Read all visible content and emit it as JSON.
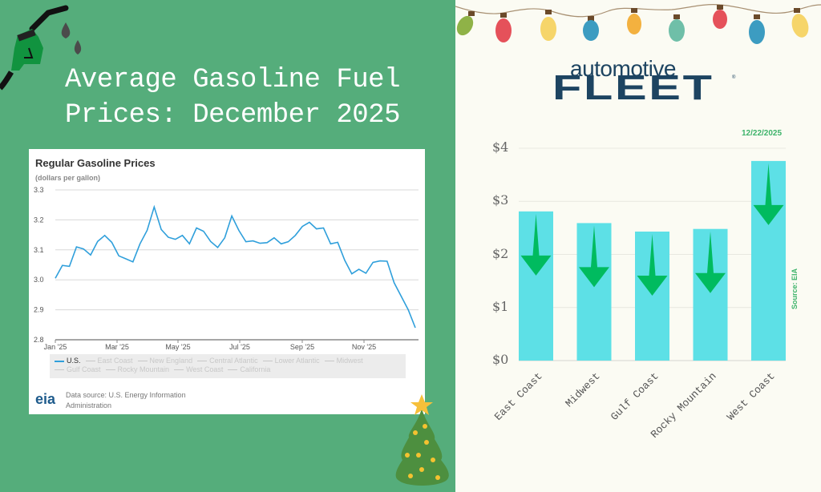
{
  "header": {
    "title_line1": "Average Gasoline Fuel",
    "title_line2": "Prices: December 2025"
  },
  "brand": {
    "top": "automotive",
    "bottom": "FLEET",
    "reg": "®"
  },
  "colors": {
    "left_bg": "#55ad7b",
    "right_bg": "#fbfbf3",
    "bar": "#5de0e6",
    "arrow": "#00bb5f",
    "line": "#2f9fdb",
    "brand": "#1d4461",
    "accent_green": "#3db36a"
  },
  "line_chart": {
    "title": "Regular Gasoline Prices",
    "unit": "(dollars per gallon)",
    "legend": [
      "U.S.",
      "East Coast",
      "New England",
      "Central Atlantic",
      "Lower Atlantic",
      "Midwest",
      "Gulf Coast",
      "Rocky Mountain",
      "West Coast",
      "California"
    ],
    "legend_active": "U.S.",
    "source_line1": "Data source: U.S. Energy Information",
    "source_line2": "Administration",
    "logo": "eia"
  },
  "bar_chart": {
    "date": "12/22/2025",
    "source": "Source: EIA"
  },
  "chart_data": [
    {
      "type": "line",
      "title": "Regular Gasoline Prices",
      "ylabel": "(dollars per gallon)",
      "xlabel": "",
      "ylim": [
        2.8,
        3.3
      ],
      "yticks": [
        "2.8",
        "2.9",
        "3.0",
        "3.1",
        "3.2",
        "3.3"
      ],
      "xticks": [
        "Jan '25",
        "Mar '25",
        "May '25",
        "Jul '25",
        "Sep '25",
        "Nov '25"
      ],
      "grid": true,
      "legend_position": "bottom",
      "series": [
        {
          "name": "U.S.",
          "values": [
            3.005,
            3.048,
            3.045,
            3.11,
            3.103,
            3.083,
            3.128,
            3.148,
            3.125,
            3.08,
            3.07,
            3.06,
            3.12,
            3.165,
            3.243,
            3.168,
            3.142,
            3.135,
            3.148,
            3.12,
            3.173,
            3.162,
            3.128,
            3.108,
            3.14,
            3.213,
            3.165,
            3.127,
            3.13,
            3.122,
            3.124,
            3.14,
            3.12,
            3.127,
            3.148,
            3.178,
            3.192,
            3.17,
            3.173,
            3.12,
            3.125,
            3.065,
            3.02,
            3.035,
            3.022,
            3.058,
            3.063,
            3.062,
            2.99,
            2.945,
            2.9,
            2.84
          ]
        }
      ]
    },
    {
      "type": "bar",
      "title": "",
      "subtitle": "12/22/2025",
      "categories": [
        "East Coast",
        "Midwest",
        "Gulf Coast",
        "Rocky Mountain",
        "West Coast"
      ],
      "values": [
        2.81,
        2.59,
        2.43,
        2.48,
        3.76
      ],
      "ylim": [
        0,
        4
      ],
      "yticks": [
        "$0",
        "$1",
        "$2",
        "$3",
        "$4"
      ],
      "ylabel": "",
      "xlabel": "",
      "annotation": "Source: EIA",
      "trend": "down arrows on all bars",
      "grid": true
    }
  ]
}
